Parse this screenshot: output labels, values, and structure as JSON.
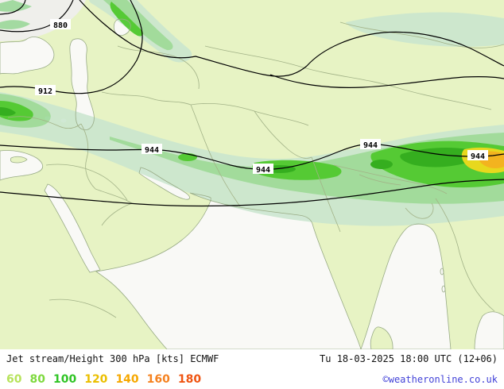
{
  "footer": {
    "title": "Jet stream/Height 300 hPa [kts] ECMWF",
    "datetime": "Tu 18-03-2025 18:00 UTC (12+06)",
    "copyright": "©weatheronline.co.uk"
  },
  "legend": {
    "values": [
      {
        "label": "60",
        "color": "#b7e35c"
      },
      {
        "label": "80",
        "color": "#7ed93e"
      },
      {
        "label": "100",
        "color": "#2fc425"
      },
      {
        "label": "120",
        "color": "#ebbf00"
      },
      {
        "label": "140",
        "color": "#f6a800"
      },
      {
        "label": "160",
        "color": "#f58220"
      },
      {
        "label": "180",
        "color": "#ef5411"
      }
    ]
  },
  "map": {
    "contour_labels": [
      {
        "value": "880"
      },
      {
        "value": "912"
      },
      {
        "value": "944"
      },
      {
        "value": "944"
      },
      {
        "value": "944"
      },
      {
        "value": "944"
      }
    ]
  },
  "colors": {
    "land": "#e7f3c4",
    "sea": "#f9f9f6",
    "shade_60": "#c9e6cf",
    "shade_80": "#96d795",
    "shade_100": "#3cc41c",
    "shade_120_core": "#17a303",
    "shade_yellow": "#e8d400",
    "shade_orange": "#f6a803",
    "contour": "#000000",
    "borders": "#a2b287"
  }
}
